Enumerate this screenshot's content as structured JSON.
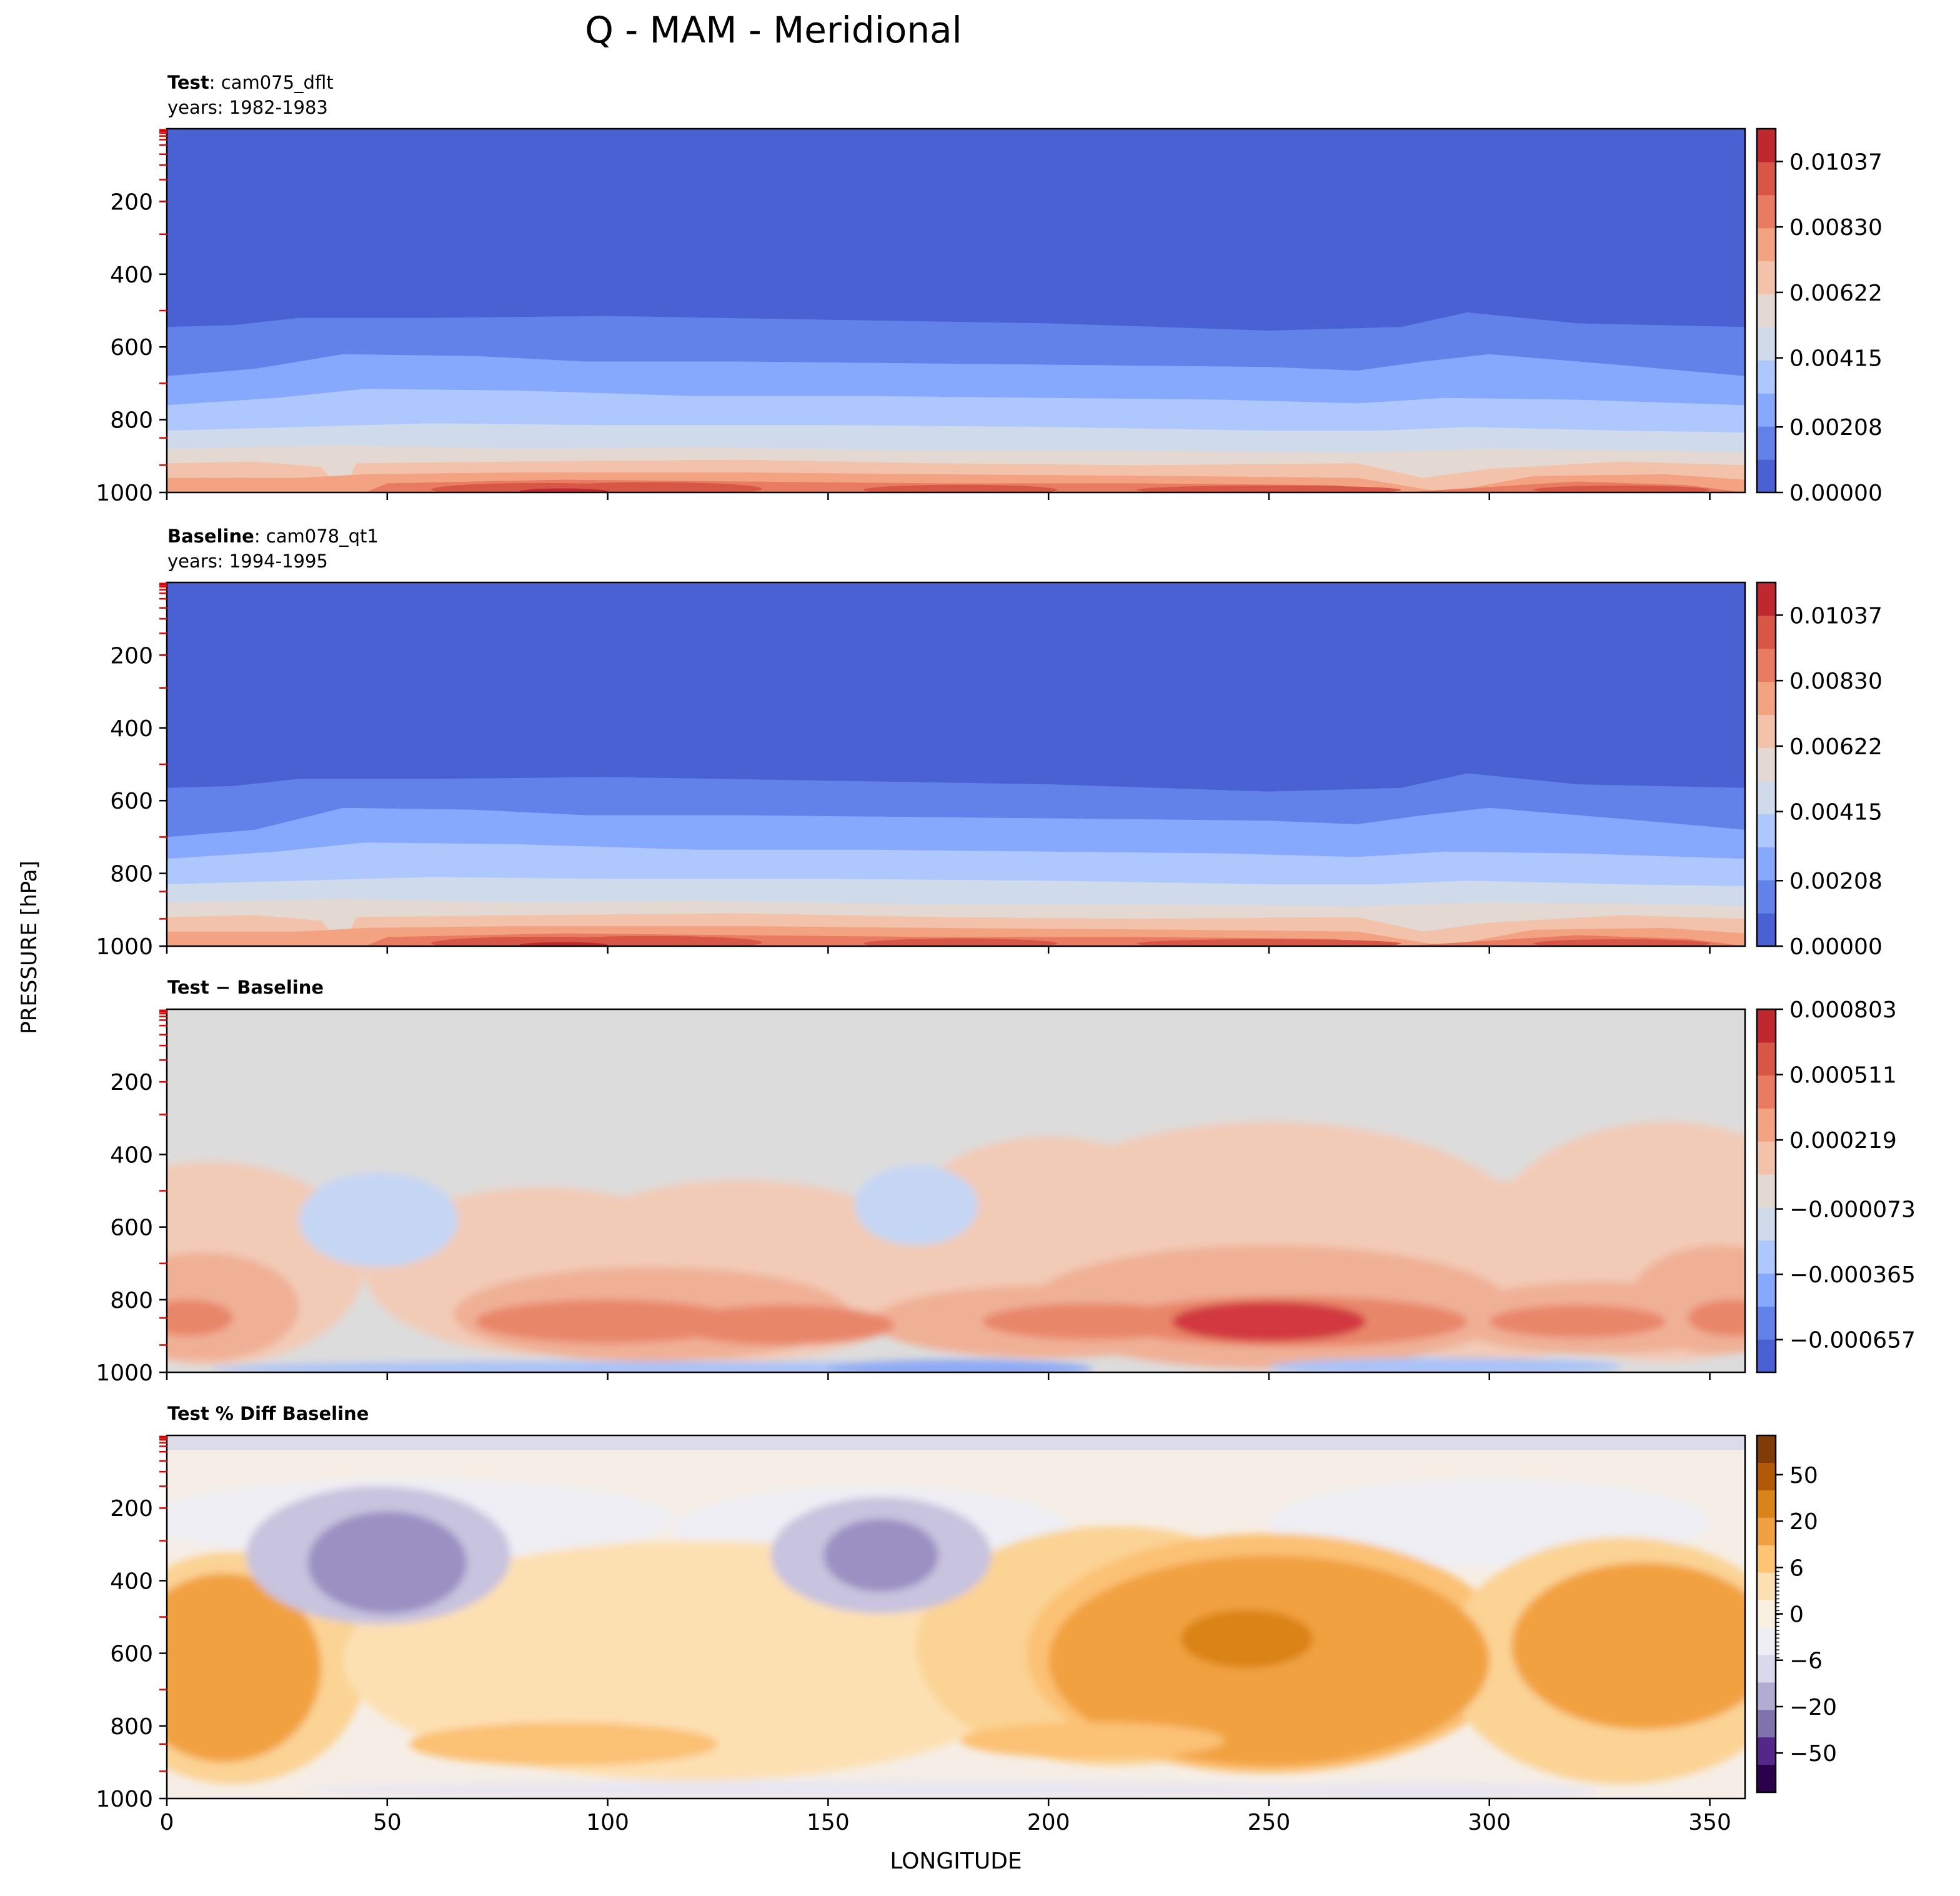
{
  "chart_data": {
    "type": "contourf",
    "title": "Q - MAM - Meridional",
    "xlabel": "LONGITUDE",
    "ylabel": "PRESSURE [hPa]",
    "x_ticks": [
      0,
      50,
      100,
      150,
      200,
      250,
      300,
      350
    ],
    "y_ticks": [
      200,
      400,
      600,
      800,
      1000
    ],
    "xlim": [
      0,
      358
    ],
    "ylim": [
      1000,
      0
    ],
    "panels": [
      {
        "id": "test",
        "title_bold": "Test",
        "title_rest": ": cam075_dflt",
        "subtitle": "years: 1982-1983",
        "colormap": "coolwarm",
        "colorbar_ticks": [
          "0.01037",
          "0.00830",
          "0.00622",
          "0.00415",
          "0.00208",
          "0.00000"
        ],
        "vmin": 0.0,
        "vmax": 0.0114
      },
      {
        "id": "baseline",
        "title_bold": "Baseline",
        "title_rest": ": cam078_qt1",
        "subtitle": "years: 1994-1995",
        "colormap": "coolwarm",
        "colorbar_ticks": [
          "0.01037",
          "0.00830",
          "0.00622",
          "0.00415",
          "0.00208",
          "0.00000"
        ],
        "vmin": 0.0,
        "vmax": 0.0114
      },
      {
        "id": "diff",
        "title_bold": "Test − Baseline",
        "title_rest": "",
        "subtitle": "",
        "colormap": "coolwarm",
        "colorbar_ticks": [
          "0.000803",
          "0.000511",
          "0.000219",
          "−0.000073",
          "−0.000365",
          "−0.000657"
        ],
        "vmin": -0.000803,
        "vmax": 0.000803
      },
      {
        "id": "pctdiff",
        "title_bold": "Test % Diff Baseline",
        "title_rest": "",
        "subtitle": "",
        "colormap": "PuOr_r",
        "colorbar_ticks": [
          "50",
          "20",
          "6",
          "0",
          "−6",
          "−20",
          "−50"
        ],
        "vmin": -100,
        "vmax": 100
      }
    ]
  },
  "colors": {
    "coolwarm": [
      "#4961d2",
      "#6282ea",
      "#87a9fd",
      "#aec7fc",
      "#cfdaea",
      "#e4d9d2",
      "#f3c2aa",
      "#f3a282",
      "#e97b62",
      "#d85646",
      "#c0282f"
    ],
    "diverging_pct": [
      "#2d004b",
      "#542788",
      "#8073ac",
      "#b2abd2",
      "#d8daeb",
      "#eeeef4",
      "#fbf0e0",
      "#fde0b2",
      "#fdc474",
      "#f0a042",
      "#d9841a",
      "#b35806",
      "#7f3b08"
    ]
  }
}
